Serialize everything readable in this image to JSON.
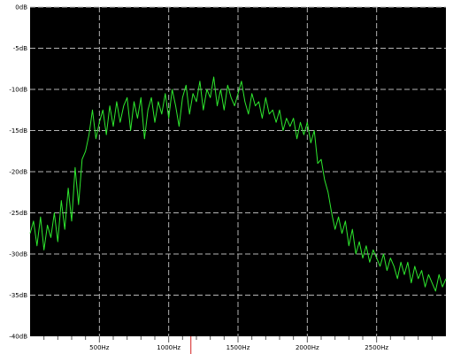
{
  "colors": {
    "plot_background": "#000000",
    "page_background": "#ffffff",
    "grid": "#b4b4b4",
    "trace": "#2ee82e",
    "marker": "#d42020"
  },
  "chart_data": {
    "type": "line",
    "title": "",
    "xlabel": "",
    "ylabel": "",
    "xlim": [
      0,
      3000
    ],
    "ylim": [
      -40,
      0
    ],
    "grid": true,
    "legend": "none",
    "x_ticks": [
      {
        "value": 500,
        "label": "500Hz"
      },
      {
        "value": 1000,
        "label": "1000Hz"
      },
      {
        "value": 1500,
        "label": "1500Hz"
      },
      {
        "value": 2000,
        "label": "2000Hz"
      },
      {
        "value": 2500,
        "label": "2500Hz"
      }
    ],
    "y_ticks": [
      {
        "value": 0,
        "label": "0dB"
      },
      {
        "value": -5,
        "label": "-5dB"
      },
      {
        "value": -10,
        "label": "-10dB"
      },
      {
        "value": -15,
        "label": "-15dB"
      },
      {
        "value": -20,
        "label": "-20dB"
      },
      {
        "value": -25,
        "label": "-25dB"
      },
      {
        "value": -30,
        "label": "-30dB"
      },
      {
        "value": -35,
        "label": "-35dB"
      },
      {
        "value": -40,
        "label": "-40dB"
      }
    ],
    "x_minor_tick_step": 100,
    "marker_frequency": 1160,
    "series": [
      {
        "x": [
          0,
          25,
          50,
          75,
          100,
          125,
          150,
          175,
          200,
          225,
          250,
          275,
          300,
          325,
          350,
          375,
          400,
          425,
          450,
          475,
          500,
          525,
          550,
          575,
          600,
          625,
          650,
          675,
          700,
          725,
          750,
          775,
          800,
          825,
          850,
          875,
          900,
          925,
          950,
          975,
          1000,
          1025,
          1050,
          1075,
          1100,
          1125,
          1150,
          1175,
          1200,
          1225,
          1250,
          1275,
          1300,
          1325,
          1350,
          1375,
          1400,
          1425,
          1450,
          1475,
          1500,
          1525,
          1550,
          1575,
          1600,
          1625,
          1650,
          1675,
          1700,
          1725,
          1750,
          1775,
          1800,
          1825,
          1850,
          1875,
          1900,
          1925,
          1950,
          1975,
          2000,
          2025,
          2050,
          2075,
          2100,
          2125,
          2150,
          2175,
          2200,
          2225,
          2250,
          2275,
          2300,
          2325,
          2350,
          2375,
          2400,
          2425,
          2450,
          2475,
          2500,
          2525,
          2550,
          2575,
          2600,
          2625,
          2650,
          2675,
          2700,
          2725,
          2750,
          2775,
          2800,
          2825,
          2850,
          2875,
          2900,
          2925,
          2950,
          2975,
          3000
        ],
        "values": [
          -27.5,
          -26,
          -29,
          -25.5,
          -29.5,
          -26.5,
          -28,
          -25,
          -28.5,
          -23.5,
          -27,
          -22,
          -26,
          -19.5,
          -24,
          -18.5,
          -17.5,
          -15.5,
          -12.5,
          -16,
          -14,
          -12.5,
          -15.5,
          -12,
          -14.5,
          -11.5,
          -14,
          -12,
          -11,
          -15,
          -11.5,
          -13.5,
          -11,
          -16,
          -12.5,
          -11,
          -14,
          -11.5,
          -13,
          -10.5,
          -13.5,
          -10,
          -12,
          -14.5,
          -11,
          -9.5,
          -13,
          -10.5,
          -11.5,
          -9,
          -12.5,
          -10,
          -11,
          -8.5,
          -12,
          -10,
          -12.5,
          -9.5,
          -11,
          -12,
          -10.5,
          -9,
          -11.5,
          -13,
          -10.5,
          -12,
          -11.5,
          -13.5,
          -11,
          -13,
          -12.5,
          -14,
          -12.5,
          -15,
          -13.5,
          -14.5,
          -13.5,
          -16,
          -14,
          -15.5,
          -14,
          -16.5,
          -15,
          -19,
          -18.5,
          -21,
          -22.5,
          -25,
          -27,
          -25.5,
          -27.5,
          -26,
          -29,
          -27,
          -30,
          -28.5,
          -30.5,
          -29,
          -31,
          -29.5,
          -30.5,
          -31.5,
          -30,
          -32,
          -30.5,
          -31.5,
          -33,
          -31,
          -32.5,
          -31,
          -33.5,
          -31.5,
          -33,
          -32,
          -34,
          -32.5,
          -33.5,
          -34.5,
          -32.5,
          -34,
          -33
        ]
      }
    ]
  }
}
